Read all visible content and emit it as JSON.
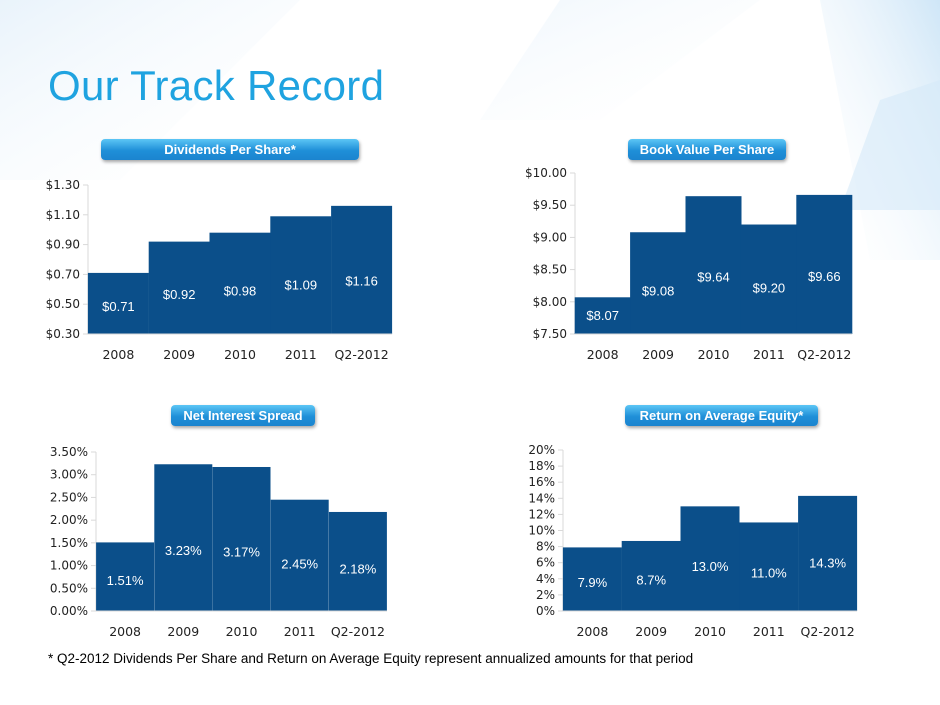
{
  "page": {
    "title": "Our Track Record",
    "footnote": "* Q2-2012 Dividends Per Share and Return on Average Equity represent annualized amounts for that period",
    "colors": {
      "bar": "#0b4f8a",
      "title": "#1fa3e0",
      "axis": "#d9d9d9",
      "bar_label": "#ffffff"
    }
  },
  "chart_data": [
    {
      "type": "bar",
      "title": "Dividends Per Share*",
      "categories": [
        "2008",
        "2009",
        "2010",
        "2011",
        "Q2-2012"
      ],
      "values": [
        0.71,
        0.92,
        0.98,
        1.09,
        1.16
      ],
      "value_labels": [
        "$0.71",
        "$0.92",
        "$0.98",
        "$1.09",
        "$1.16"
      ],
      "ylim": [
        0.3,
        1.3
      ],
      "yticks": [
        0.3,
        0.5,
        0.7,
        0.9,
        1.1,
        1.3
      ],
      "ytick_labels": [
        "$0.30",
        "$0.50",
        "$0.70",
        "$0.90",
        "$1.10",
        "$1.30"
      ],
      "xlabel": "",
      "ylabel": "",
      "grid": false
    },
    {
      "type": "bar",
      "title": "Book Value Per Share",
      "categories": [
        "2008",
        "2009",
        "2010",
        "2011",
        "Q2-2012"
      ],
      "values": [
        8.07,
        9.08,
        9.64,
        9.2,
        9.66
      ],
      "value_labels": [
        "$8.07",
        "$9.08",
        "$9.64",
        "$9.20",
        "$9.66"
      ],
      "ylim": [
        7.5,
        10.0
      ],
      "yticks": [
        7.5,
        8.0,
        8.5,
        9.0,
        9.5,
        10.0
      ],
      "ytick_labels": [
        "$7.50",
        "$8.00",
        "$8.50",
        "$9.00",
        "$9.50",
        "$10.00"
      ],
      "xlabel": "",
      "ylabel": "",
      "grid": false
    },
    {
      "type": "bar",
      "title": "Net Interest Spread",
      "categories": [
        "2008",
        "2009",
        "2010",
        "2011",
        "Q2-2012"
      ],
      "values": [
        1.51,
        3.23,
        3.17,
        2.45,
        2.18
      ],
      "value_labels": [
        "1.51%",
        "3.23%",
        "3.17%",
        "2.45%",
        "2.18%"
      ],
      "ylim": [
        0,
        3.5
      ],
      "yticks": [
        0,
        0.5,
        1.0,
        1.5,
        2.0,
        2.5,
        3.0,
        3.5
      ],
      "ytick_labels": [
        "0.00%",
        "0.50%",
        "1.00%",
        "1.50%",
        "2.00%",
        "2.50%",
        "3.00%",
        "3.50%"
      ],
      "xlabel": "",
      "ylabel": "",
      "grid": false
    },
    {
      "type": "bar",
      "title": "Return on Average Equity*",
      "categories": [
        "2008",
        "2009",
        "2010",
        "2011",
        "Q2-2012"
      ],
      "values": [
        7.9,
        8.7,
        13.0,
        11.0,
        14.3
      ],
      "value_labels": [
        "7.9%",
        "8.7%",
        "13.0%",
        "11.0%",
        "14.3%"
      ],
      "ylim": [
        0,
        20
      ],
      "yticks": [
        0,
        2,
        4,
        6,
        8,
        10,
        12,
        14,
        16,
        18,
        20
      ],
      "ytick_labels": [
        "0%",
        "2%",
        "4%",
        "6%",
        "8%",
        "10%",
        "12%",
        "14%",
        "16%",
        "18%",
        "20%"
      ],
      "xlabel": "",
      "ylabel": "",
      "grid": false
    }
  ]
}
